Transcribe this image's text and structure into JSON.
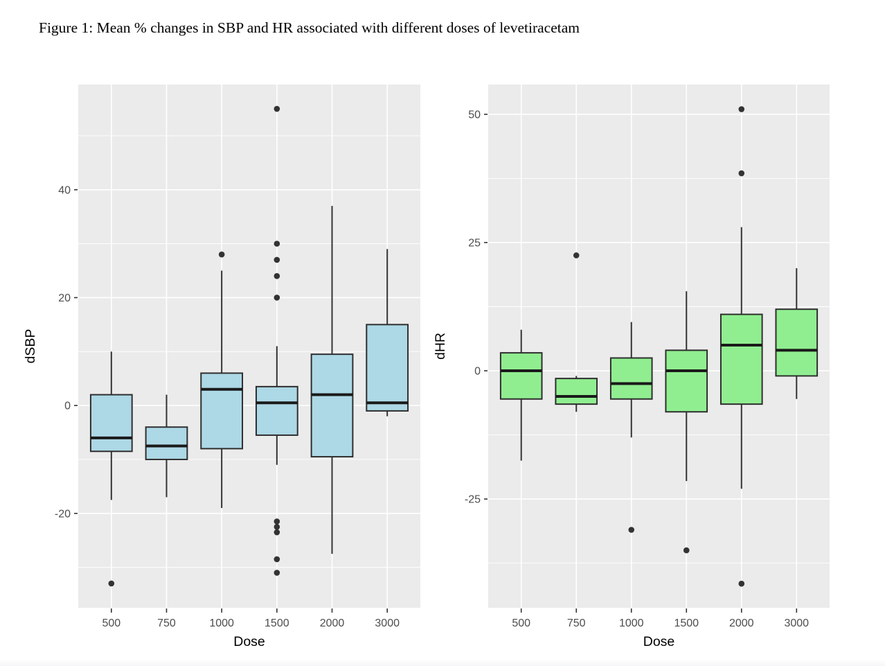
{
  "title": "Figure 1: Mean % changes in SBP and HR associated with different doses of levetiracetam",
  "colors": {
    "panel_bg": "#EBEBEB",
    "grid": "#FFFFFF",
    "box_border": "#2E2E2E",
    "median": "#1A1A1A",
    "whisker": "#333333",
    "outlier": "#333333",
    "tick_text": "#4D4D4D",
    "axis_title_text": "#000000",
    "sbp_fill": "#ADD8E6",
    "hr_fill": "#90EE90"
  },
  "chart_data": [
    {
      "type": "boxplot",
      "ylabel": "dSBP",
      "xlabel": "Dose",
      "categories": [
        "500",
        "750",
        "1000",
        "1500",
        "2000",
        "3000"
      ],
      "ylim": [
        -37.5,
        59.5
      ],
      "yticks": [
        40,
        20,
        0,
        -20
      ],
      "yminor": [
        50,
        30,
        10,
        -10,
        -30
      ],
      "fill": "#ADD8E6",
      "grid": "on",
      "legend": "none",
      "boxes": [
        {
          "category": "500",
          "whisker_low": -17.5,
          "q1": -8.5,
          "median": -6,
          "q3": 2,
          "whisker_high": 10,
          "outliers": [
            -33
          ]
        },
        {
          "category": "750",
          "whisker_low": -17,
          "q1": -10,
          "median": -7.5,
          "q3": -4,
          "whisker_high": 2,
          "outliers": []
        },
        {
          "category": "1000",
          "whisker_low": -19,
          "q1": -8,
          "median": 3,
          "q3": 6,
          "whisker_high": 25,
          "outliers": [
            28
          ]
        },
        {
          "category": "1500",
          "whisker_low": -11,
          "q1": -5.5,
          "median": 0.5,
          "q3": 3.5,
          "whisker_high": 11,
          "outliers": [
            55,
            30,
            27,
            24,
            20,
            -21.5,
            -22.5,
            -23.5,
            -28.5,
            -31
          ]
        },
        {
          "category": "2000",
          "whisker_low": -27.5,
          "q1": -9.5,
          "median": 2,
          "q3": 9.5,
          "whisker_high": 37,
          "outliers": []
        },
        {
          "category": "3000",
          "whisker_low": -2,
          "q1": -1,
          "median": 0.5,
          "q3": 15,
          "whisker_high": 29,
          "outliers": []
        }
      ]
    },
    {
      "type": "boxplot",
      "ylabel": "dHR",
      "xlabel": "Dose",
      "categories": [
        "500",
        "750",
        "1000",
        "1500",
        "2000",
        "3000"
      ],
      "ylim": [
        -46.2,
        55.8
      ],
      "yticks": [
        50,
        25,
        0,
        -25
      ],
      "yminor": [
        37.5,
        12.5,
        -12.5,
        -37.5
      ],
      "fill": "#90EE90",
      "grid": "on",
      "legend": "none",
      "boxes": [
        {
          "category": "500",
          "whisker_low": -17.5,
          "q1": -5.5,
          "median": 0,
          "q3": 3.5,
          "whisker_high": 8,
          "outliers": []
        },
        {
          "category": "750",
          "whisker_low": -8,
          "q1": -6.5,
          "median": -5,
          "q3": -1.5,
          "whisker_high": -1,
          "outliers": [
            22.5
          ]
        },
        {
          "category": "1000",
          "whisker_low": -13,
          "q1": -5.5,
          "median": -2.5,
          "q3": 2.5,
          "whisker_high": 9.5,
          "outliers": [
            -31
          ]
        },
        {
          "category": "1500",
          "whisker_low": -21.5,
          "q1": -8,
          "median": 0,
          "q3": 4,
          "whisker_high": 15.5,
          "outliers": [
            -35
          ]
        },
        {
          "category": "2000",
          "whisker_low": -23,
          "q1": -6.5,
          "median": 5,
          "q3": 11,
          "whisker_high": 28,
          "outliers": [
            51,
            38.5,
            -41.5
          ]
        },
        {
          "category": "3000",
          "whisker_low": -5.5,
          "q1": -1,
          "median": 4,
          "q3": 12,
          "whisker_high": 20,
          "outliers": []
        }
      ]
    }
  ]
}
